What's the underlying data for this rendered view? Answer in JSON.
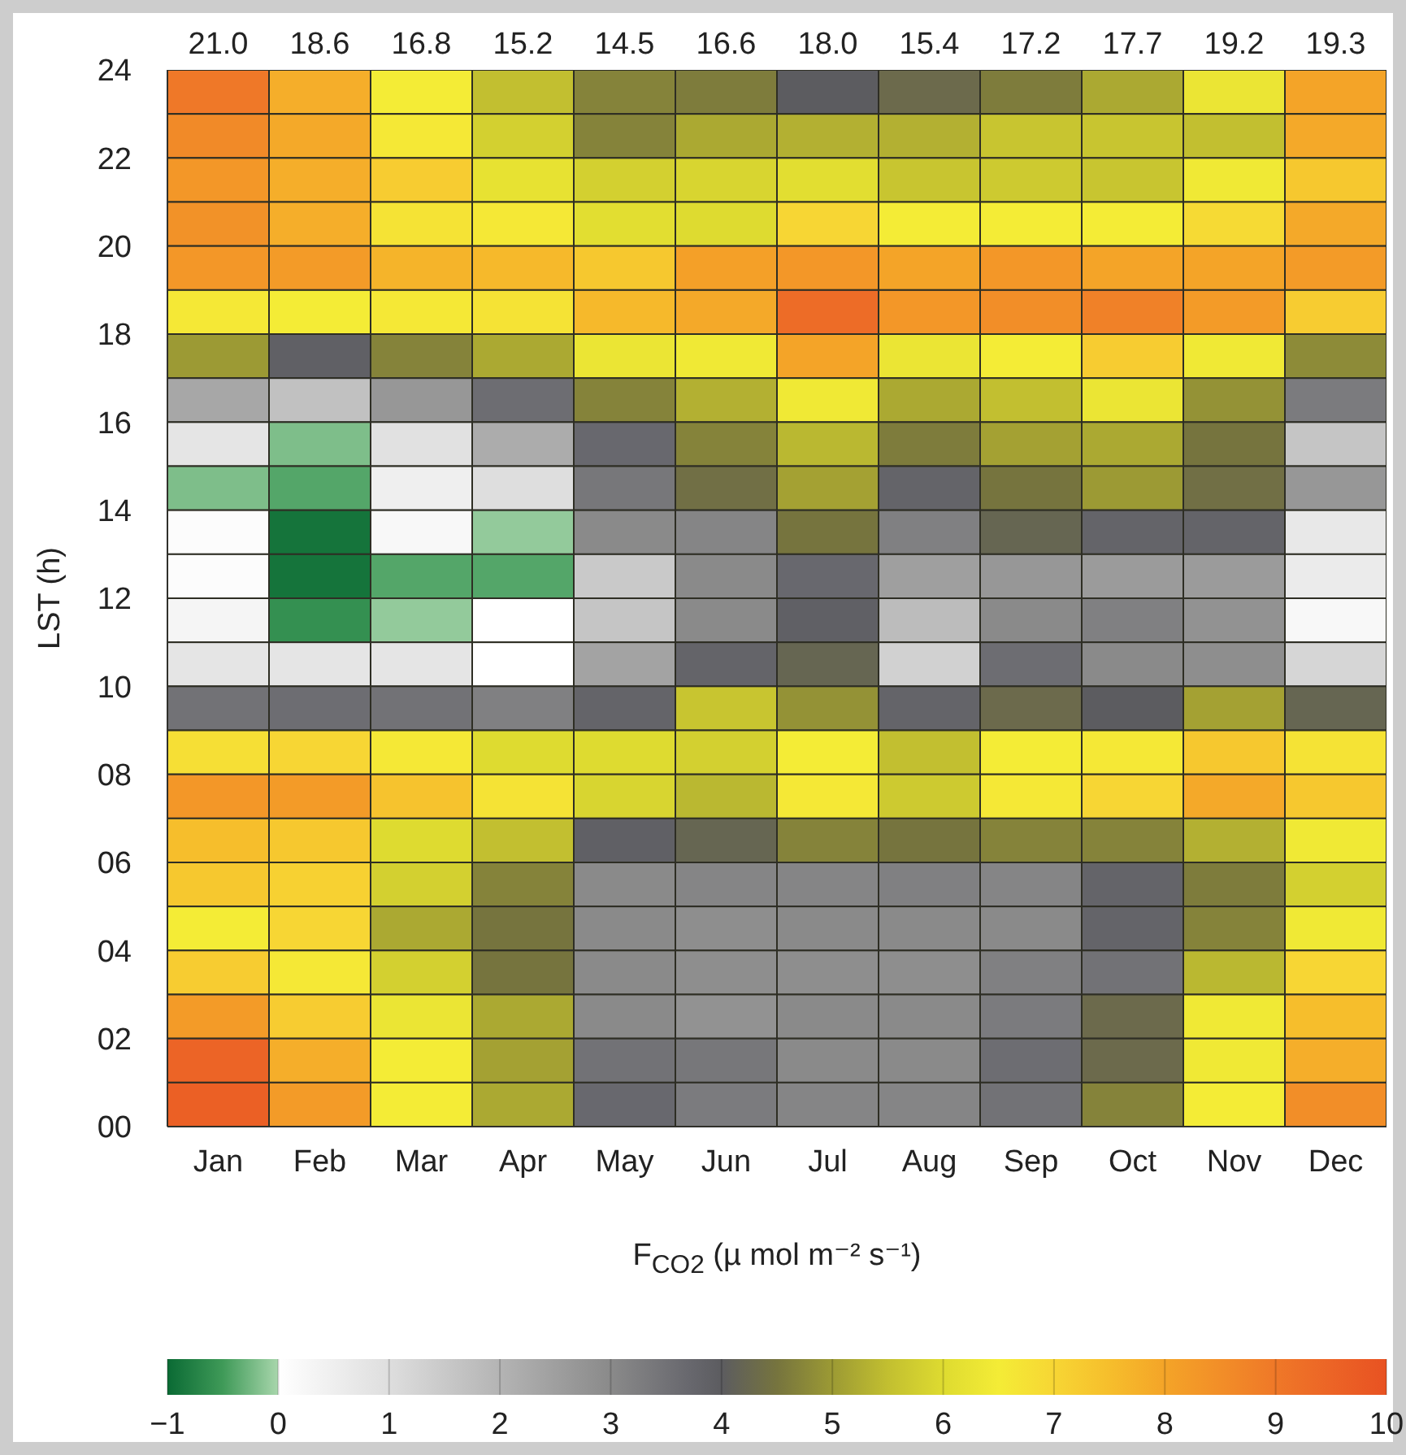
{
  "chart_data": {
    "type": "heatmap",
    "ylabel": "LST (h)",
    "clabel": "F$_{CO2}$ (µ mol m⁻² s⁻¹)",
    "categories": [
      "Jan",
      "Feb",
      "Mar",
      "Apr",
      "May",
      "Jun",
      "Jul",
      "Aug",
      "Sep",
      "Oct",
      "Nov",
      "Dec"
    ],
    "ylim": [
      0,
      24
    ],
    "yticks": [
      {
        "value": 0,
        "label": "00"
      },
      {
        "value": 2,
        "label": "02"
      },
      {
        "value": 4,
        "label": "04"
      },
      {
        "value": 6,
        "label": "06"
      },
      {
        "value": 8,
        "label": "08"
      },
      10,
      12,
      14,
      16,
      18,
      20,
      22,
      24
    ],
    "clim": [
      -1,
      10
    ],
    "cticks": [
      {
        "value": -1,
        "label": "−1"
      },
      0,
      1,
      2,
      3,
      4,
      5,
      6,
      7,
      8,
      9,
      10
    ],
    "annotations": [
      "21.0",
      "18.6",
      "16.8",
      "15.2",
      "14.5",
      "16.6",
      "18.0",
      "15.4",
      "17.2",
      "17.7",
      "19.2",
      "19.3"
    ],
    "cells": [
      [
        9.0,
        7.8,
        6.5,
        5.5,
        4.7,
        4.6,
        4.0,
        4.3,
        4.6,
        5.2,
        6.3,
        8.0
      ],
      [
        8.6,
        7.9,
        6.6,
        5.8,
        4.7,
        5.2,
        5.3,
        5.3,
        5.6,
        5.6,
        5.5,
        7.9
      ],
      [
        8.3,
        7.8,
        7.2,
        6.2,
        5.8,
        5.9,
        6.1,
        5.6,
        5.7,
        5.6,
        6.4,
        7.3
      ],
      [
        8.4,
        7.8,
        6.7,
        6.6,
        6.1,
        6.0,
        7.0,
        6.5,
        6.5,
        6.5,
        6.9,
        7.9
      ],
      [
        8.3,
        8.2,
        7.7,
        7.6,
        7.3,
        8.1,
        8.3,
        8.0,
        8.3,
        8.0,
        8.0,
        8.2
      ],
      [
        6.6,
        6.5,
        6.6,
        6.7,
        7.6,
        7.9,
        9.3,
        8.3,
        8.5,
        8.8,
        8.2,
        7.2
      ],
      [
        5.0,
        3.9,
        4.7,
        5.2,
        6.3,
        6.4,
        8.0,
        6.3,
        6.5,
        7.2,
        6.4,
        4.8
      ],
      [
        2.3,
        1.7,
        2.7,
        3.6,
        4.7,
        5.3,
        6.4,
        5.2,
        5.5,
        6.3,
        4.9,
        3.3
      ],
      [
        0.8,
        -0.2,
        0.9,
        2.2,
        3.7,
        4.7,
        5.4,
        4.6,
        5.1,
        5.2,
        4.5,
        1.6
      ],
      [
        -0.2,
        -0.4,
        0.5,
        1.0,
        3.4,
        4.4,
        5.1,
        3.8,
        4.5,
        5.0,
        4.4,
        2.7
      ],
      [
        0.1,
        -0.9,
        0.2,
        -0.1,
        3.0,
        3.1,
        4.5,
        3.2,
        4.2,
        3.8,
        3.8,
        0.7
      ],
      [
        0.1,
        -0.9,
        -0.4,
        -0.4,
        1.5,
        3.0,
        3.7,
        2.5,
        2.7,
        2.6,
        2.6,
        0.6
      ],
      [
        0.3,
        -0.6,
        -0.1,
        0.0,
        1.6,
        3.0,
        3.9,
        1.8,
        3.0,
        3.2,
        2.8,
        0.2
      ],
      [
        0.8,
        0.8,
        0.8,
        0.0,
        2.4,
        3.8,
        4.2,
        1.3,
        3.6,
        3.0,
        2.9,
        1.2
      ],
      [
        3.5,
        3.6,
        3.5,
        3.2,
        3.8,
        5.6,
        4.9,
        3.8,
        4.3,
        4.0,
        5.1,
        4.2
      ],
      [
        6.8,
        7.0,
        6.6,
        6.0,
        6.0,
        5.8,
        6.5,
        5.5,
        6.5,
        6.6,
        7.3,
        6.7
      ],
      [
        8.3,
        8.2,
        7.4,
        6.7,
        5.9,
        5.4,
        6.6,
        5.7,
        6.6,
        7.0,
        7.9,
        7.3
      ],
      [
        7.5,
        7.3,
        6.0,
        5.5,
        3.9,
        4.2,
        4.7,
        4.5,
        4.7,
        4.7,
        5.3,
        6.4
      ],
      [
        7.3,
        7.1,
        5.8,
        4.7,
        3.0,
        3.1,
        3.1,
        3.2,
        3.1,
        3.8,
        4.6,
        5.8
      ],
      [
        6.5,
        7.0,
        5.2,
        4.5,
        3.0,
        2.9,
        3.0,
        3.0,
        3.0,
        3.8,
        4.7,
        6.4
      ],
      [
        7.2,
        6.6,
        5.8,
        4.5,
        3.0,
        2.9,
        2.9,
        2.9,
        3.2,
        3.5,
        5.4,
        7.0
      ],
      [
        8.2,
        7.2,
        6.3,
        5.2,
        3.0,
        2.8,
        3.0,
        3.0,
        3.3,
        4.3,
        6.4,
        7.5
      ],
      [
        9.5,
        7.8,
        6.5,
        5.1,
        3.5,
        3.4,
        3.0,
        3.0,
        3.6,
        4.3,
        6.4,
        7.8
      ],
      [
        9.6,
        8.2,
        6.5,
        5.2,
        3.7,
        3.3,
        3.1,
        3.1,
        3.5,
        4.7,
        6.5,
        8.5
      ]
    ]
  }
}
